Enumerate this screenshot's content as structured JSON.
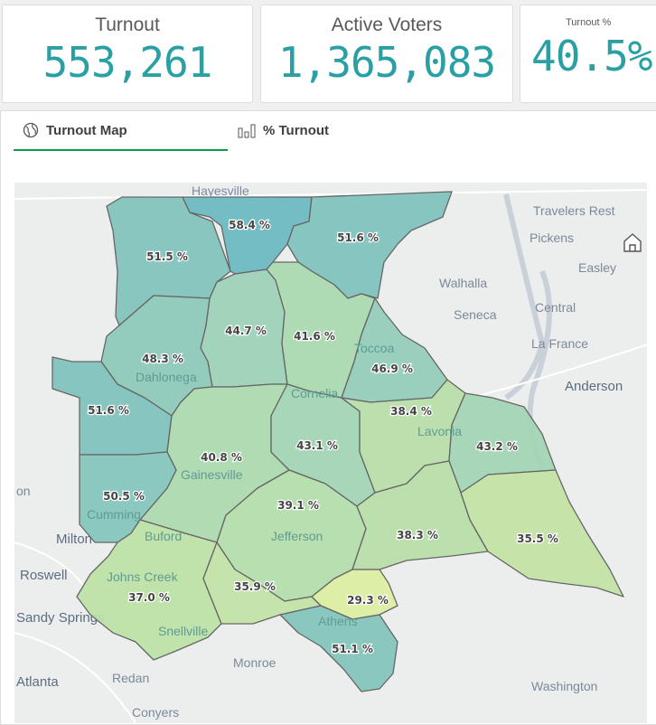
{
  "kpis": [
    {
      "title": "Turnout",
      "value": "553,261"
    },
    {
      "title": "Active Voters",
      "value": "1,365,083"
    },
    {
      "title": "Turnout %",
      "value": "40.5%"
    }
  ],
  "tabs": [
    {
      "label": "Turnout Map",
      "icon": "globe-icon",
      "active": true
    },
    {
      "label": "% Turnout",
      "icon": "bar-chart-icon",
      "active": false
    }
  ],
  "map": {
    "counties": [
      "51.5 %",
      "58.4 %",
      "51.6 %",
      "44.7 %",
      "41.6 %",
      "46.9 %",
      "48.3 %",
      "51.6 %",
      "40.8 %",
      "43.1 %",
      "38.4 %",
      "43.2 %",
      "50.5 %",
      "39.1 %",
      "38.3 %",
      "35.5 %",
      "37.0 %",
      "35.9 %",
      "29.3 %",
      "51.1 %"
    ],
    "places": [
      "Hayesville",
      "Travelers Rest",
      "Pickens",
      "Easley",
      "Walhalla",
      "Seneca",
      "Central",
      "La France",
      "Anderson",
      "Milton",
      "Roswell",
      "Sandy Springs",
      "Atlanta",
      "Redan",
      "Conyers",
      "Monroe",
      "Washington",
      "Dahlonega",
      "Toccoa",
      "Cornelia",
      "Lavonia",
      "Gainesville",
      "Cumming",
      "Buford",
      "Johns Creek",
      "Jefferson",
      "Snellville",
      "Athens",
      "on"
    ],
    "home_icon": "home-icon"
  }
}
